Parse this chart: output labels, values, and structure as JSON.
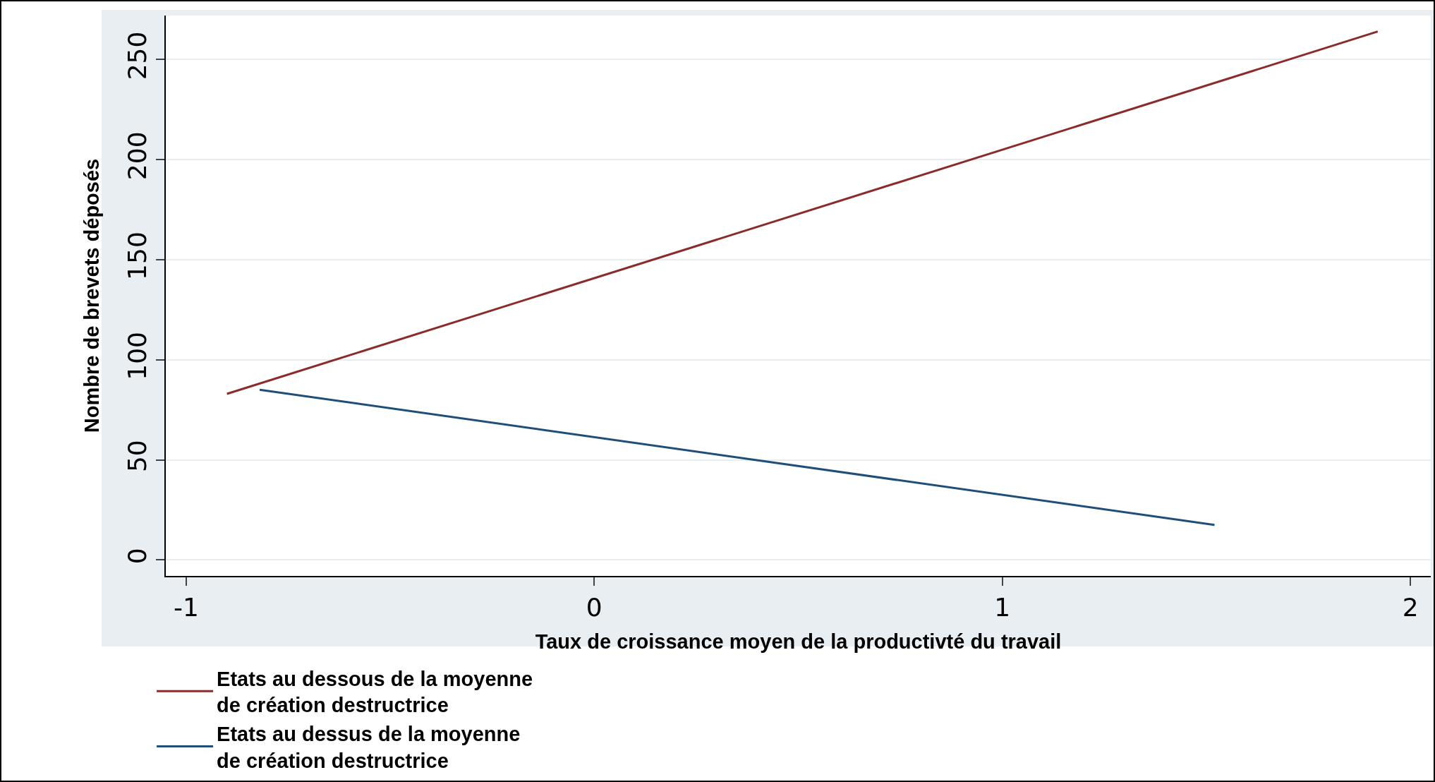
{
  "chart_data": {
    "type": "line",
    "xlabel": "Taux de croissance moyen de la productivté du travail",
    "ylabel": "Nombre de brevets déposés",
    "series": [
      {
        "name": "Etats au dessous de la moyenne\nde création destructrice",
        "color": "#8b2b2b",
        "x": [
          -0.9,
          1.92
        ],
        "values": [
          83,
          264
        ]
      },
      {
        "name": "Etats au dessus de la moyenne\nde création destructrice",
        "color": "#1f4e79",
        "x": [
          -0.82,
          1.52
        ],
        "values": [
          85,
          17.5
        ]
      }
    ],
    "xlim": [
      -1.05,
      2.05
    ],
    "xticks": [
      -1,
      0,
      1,
      2
    ],
    "ylim": [
      -8,
      272
    ],
    "yticks": [
      0,
      50,
      100,
      150,
      200,
      250
    ],
    "grid": "y",
    "legend": "bottom",
    "marker": "none",
    "line_style": "solid"
  }
}
